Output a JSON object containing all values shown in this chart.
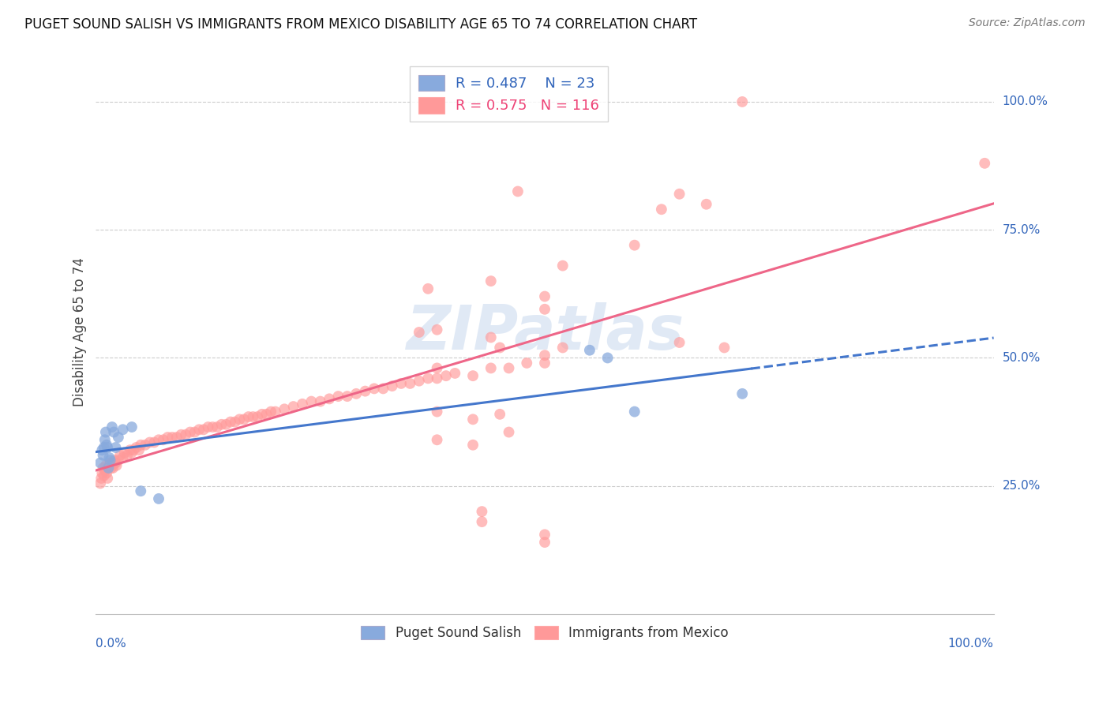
{
  "title": "PUGET SOUND SALISH VS IMMIGRANTS FROM MEXICO DISABILITY AGE 65 TO 74 CORRELATION CHART",
  "source": "Source: ZipAtlas.com",
  "ylabel": "Disability Age 65 to 74",
  "blue_color": "#88AADD",
  "pink_color": "#FF9999",
  "blue_line_color": "#4477CC",
  "pink_line_color": "#EE6688",
  "blue_R": 0.487,
  "blue_N": 23,
  "pink_R": 0.575,
  "pink_N": 116,
  "watermark": "ZIPatlas",
  "legend_label_blue": "Puget Sound Salish",
  "legend_label_pink": "Immigrants from Mexico",
  "blue_scatter_x": [
    0.005,
    0.007,
    0.008,
    0.009,
    0.01,
    0.011,
    0.012,
    0.013,
    0.014,
    0.015,
    0.016,
    0.018,
    0.02,
    0.022,
    0.025,
    0.03,
    0.04,
    0.05,
    0.07,
    0.55,
    0.57,
    0.6,
    0.72
  ],
  "blue_scatter_y": [
    0.295,
    0.32,
    0.31,
    0.325,
    0.34,
    0.355,
    0.33,
    0.325,
    0.285,
    0.305,
    0.3,
    0.365,
    0.355,
    0.325,
    0.345,
    0.36,
    0.365,
    0.24,
    0.225,
    0.515,
    0.5,
    0.395,
    0.43
  ],
  "pink_scatter_x": [
    0.005,
    0.006,
    0.007,
    0.008,
    0.009,
    0.01,
    0.011,
    0.012,
    0.013,
    0.014,
    0.015,
    0.016,
    0.017,
    0.018,
    0.019,
    0.02,
    0.021,
    0.022,
    0.023,
    0.025,
    0.027,
    0.03,
    0.032,
    0.035,
    0.038,
    0.04,
    0.042,
    0.045,
    0.048,
    0.05,
    0.055,
    0.06,
    0.065,
    0.07,
    0.075,
    0.08,
    0.085,
    0.09,
    0.095,
    0.1,
    0.105,
    0.11,
    0.115,
    0.12,
    0.125,
    0.13,
    0.135,
    0.14,
    0.145,
    0.15,
    0.155,
    0.16,
    0.165,
    0.17,
    0.175,
    0.18,
    0.185,
    0.19,
    0.195,
    0.2,
    0.21,
    0.22,
    0.23,
    0.24,
    0.25,
    0.26,
    0.27,
    0.28,
    0.29,
    0.3,
    0.31,
    0.32,
    0.33,
    0.34,
    0.35,
    0.36,
    0.37,
    0.38,
    0.39,
    0.4,
    0.42,
    0.44,
    0.46,
    0.48,
    0.5,
    0.38,
    0.42,
    0.46,
    0.38,
    0.42,
    0.5,
    0.52,
    0.44,
    0.38,
    0.68,
    0.72,
    0.99,
    0.5,
    0.44,
    0.47,
    0.5,
    0.43,
    0.43,
    0.5,
    0.52,
    0.63,
    0.65,
    0.5,
    0.6,
    0.45,
    0.45,
    0.36,
    0.37,
    0.38,
    0.65,
    0.7
  ],
  "pink_scatter_y": [
    0.255,
    0.265,
    0.275,
    0.285,
    0.27,
    0.28,
    0.29,
    0.275,
    0.265,
    0.285,
    0.29,
    0.295,
    0.285,
    0.295,
    0.285,
    0.295,
    0.3,
    0.295,
    0.29,
    0.3,
    0.31,
    0.305,
    0.315,
    0.31,
    0.32,
    0.315,
    0.32,
    0.325,
    0.32,
    0.33,
    0.33,
    0.335,
    0.335,
    0.34,
    0.34,
    0.345,
    0.345,
    0.345,
    0.35,
    0.35,
    0.355,
    0.355,
    0.36,
    0.36,
    0.365,
    0.365,
    0.365,
    0.37,
    0.37,
    0.375,
    0.375,
    0.38,
    0.38,
    0.385,
    0.385,
    0.385,
    0.39,
    0.39,
    0.395,
    0.395,
    0.4,
    0.405,
    0.41,
    0.415,
    0.415,
    0.42,
    0.425,
    0.425,
    0.43,
    0.435,
    0.44,
    0.44,
    0.445,
    0.45,
    0.45,
    0.455,
    0.46,
    0.46,
    0.465,
    0.47,
    0.465,
    0.48,
    0.48,
    0.49,
    0.49,
    0.395,
    0.38,
    0.355,
    0.34,
    0.33,
    0.505,
    0.52,
    0.54,
    0.555,
    0.8,
    1.0,
    0.88,
    0.62,
    0.65,
    0.825,
    0.14,
    0.18,
    0.2,
    0.155,
    0.68,
    0.79,
    0.82,
    0.595,
    0.72,
    0.52,
    0.39,
    0.55,
    0.635,
    0.48,
    0.53,
    0.52
  ]
}
